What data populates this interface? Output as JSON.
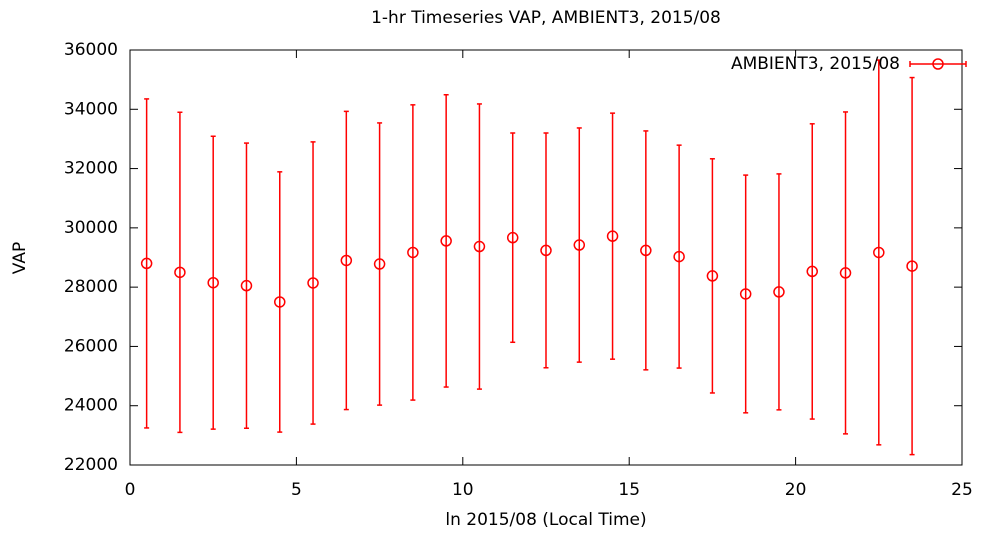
{
  "chart_data": {
    "type": "errorbar",
    "title": "1-hr Timeseries VAP, AMBIENT3, 2015/08",
    "x_label": "ln 2015/08 (Local Time)",
    "y_label": "VAP",
    "x": [
      0.5,
      1.5,
      2.5,
      3.5,
      4.5,
      5.5,
      6.5,
      7.5,
      8.5,
      9.5,
      10.5,
      11.5,
      12.5,
      13.5,
      14.5,
      15.5,
      16.5,
      17.5,
      18.5,
      19.5,
      20.5,
      21.5,
      22.5,
      23.5
    ],
    "series": [
      {
        "name": "AMBIENT3, 2015/08",
        "color": "#ff0000",
        "values": [
          28800,
          28500,
          28150,
          28050,
          27500,
          28140,
          28900,
          28780,
          29170,
          29560,
          29370,
          29670,
          29240,
          29420,
          29720,
          29240,
          29030,
          28380,
          27770,
          27840,
          28530,
          28480,
          29170,
          28710
        ],
        "errors": [
          5550,
          5400,
          4940,
          4810,
          4390,
          4760,
          5030,
          4760,
          4980,
          4930,
          4810,
          3530,
          3960,
          3950,
          4150,
          4030,
          3760,
          3950,
          4010,
          3980,
          4980,
          5430,
          6490,
          6360
        ]
      }
    ],
    "xlim": [
      0,
      25
    ],
    "xticks": [
      0,
      5,
      10,
      15,
      20,
      25
    ],
    "ylim": [
      22000,
      36000
    ],
    "yticks": [
      22000,
      24000,
      26000,
      28000,
      30000,
      32000,
      34000,
      36000
    ],
    "legend": "top-right"
  }
}
